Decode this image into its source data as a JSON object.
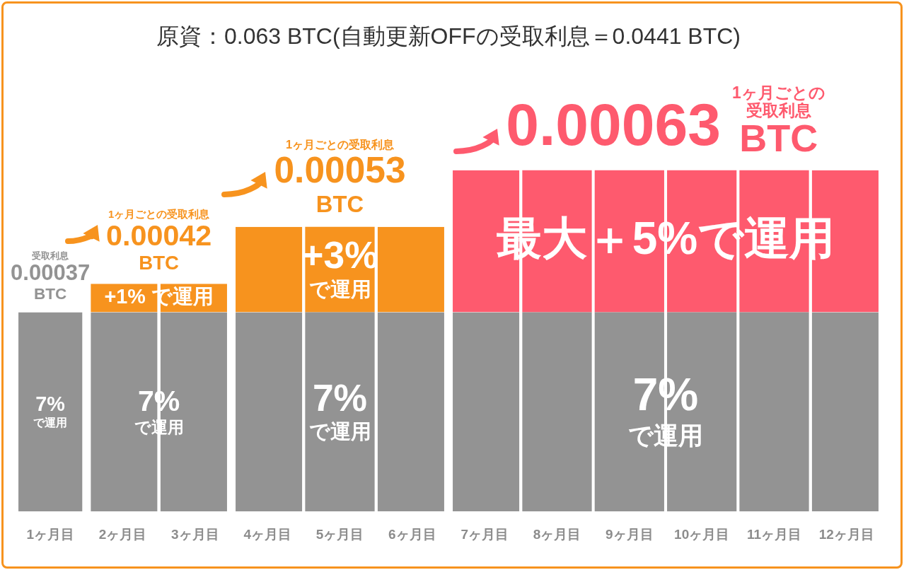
{
  "chart_data": {
    "type": "bar",
    "title": "原資：0.063 BTC(自動更新OFFの受取利息＝0.0441 BTC)",
    "categories": [
      "1ヶ月目",
      "2ヶ月目",
      "3ヶ月目",
      "4ヶ月目",
      "5ヶ月目",
      "6ヶ月目",
      "7ヶ月目",
      "8ヶ月目",
      "9ヶ月目",
      "10ヶ月目",
      "11ヶ月目",
      "12ヶ月目"
    ],
    "stacked": true,
    "series": [
      {
        "color": "#939393",
        "values": [
          7,
          7,
          7,
          7,
          7,
          7,
          7,
          7,
          7,
          7,
          7,
          7
        ],
        "value_labels": [
          "7%\nで運用",
          "7%\nで運用",
          null,
          null,
          "7%\nで運用",
          null,
          null,
          null,
          "7%\nで運用",
          null,
          null,
          null
        ]
      },
      {
        "colors": [
          "#f7931e",
          "#f7931e",
          "#f7931e",
          "#f7931e",
          "#f7931e",
          "#f7931e",
          "#fe5a6e",
          "#fe5a6e",
          "#fe5a6e",
          "#fe5a6e",
          "#fe5a6e",
          "#fe5a6e"
        ],
        "values": [
          null,
          1,
          1,
          3,
          3,
          3,
          5,
          5,
          5,
          5,
          5,
          5
        ],
        "value_labels": [
          null,
          "+1%\nで運用",
          null,
          null,
          "+3%\nで運用",
          null,
          null,
          null,
          "最大＋5%で運用",
          null,
          null,
          null
        ]
      }
    ],
    "tick_labels": "x",
    "grid": false,
    "legend": false,
    "annotations": [
      {
        "text": "受取利息\n0.00037\nBTC",
        "x": "1ヶ月目",
        "y": 7
      },
      {
        "text": "1ヶ月ごとの受取利息\n0.00042\nBTC",
        "x": "2ヶ月目",
        "y": 8
      },
      {
        "text": "1ヶ月ごとの受取利息\n0.00053\nBTC",
        "x": "5ヶ月目",
        "y": 10
      },
      {
        "text": "0.00063\n1ヶ月ごとの受取利息\nBTC",
        "x": "9ヶ月目",
        "y": 12
      }
    ]
  }
}
